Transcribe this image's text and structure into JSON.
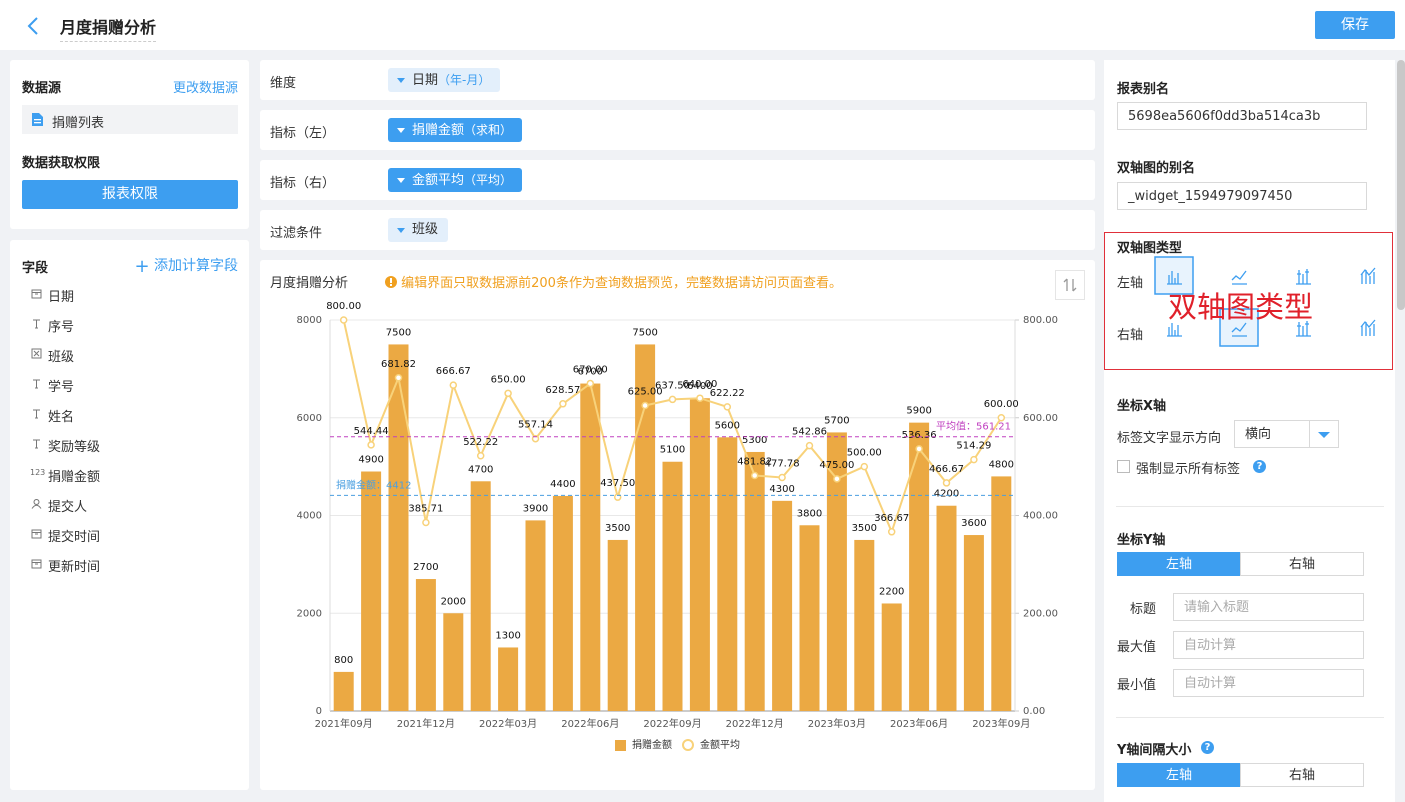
{
  "header": {
    "title": "月度捐赠分析",
    "save": "保存"
  },
  "data_source": {
    "title": "数据源",
    "change": "更改数据源",
    "table": "捐赠列表",
    "permission_title": "数据获取权限",
    "permission_button": "报表权限"
  },
  "fields": {
    "title": "字段",
    "add": "添加计算字段",
    "items": [
      {
        "name": "日期"
      },
      {
        "name": "序号"
      },
      {
        "name": "班级"
      },
      {
        "name": "学号"
      },
      {
        "name": "姓名"
      },
      {
        "name": "奖励等级"
      },
      {
        "name": "捐赠金额",
        "icon": "123"
      },
      {
        "name": "提交人"
      },
      {
        "name": "提交时间"
      },
      {
        "name": "更新时间"
      }
    ]
  },
  "config": {
    "rows": [
      {
        "label": "维度",
        "field": "日期",
        "suffix": "（年-月）",
        "filled": false
      },
      {
        "label": "指标（左）",
        "field": "捐赠金额",
        "suffix": "（求和）",
        "filled": true
      },
      {
        "label": "指标（右）",
        "field": "金额平均",
        "suffix": "（平均）",
        "filled": true
      },
      {
        "label": "过滤条件",
        "field": "班级",
        "filled": false
      }
    ]
  },
  "chart_data": {
    "type": "bar_line",
    "title": "月度捐赠分析",
    "notice": "编辑界面只取数据源前200条作为查询数据预览，完整数据请访问页面查看。",
    "categories": [
      "2021年09月",
      null,
      null,
      "2021年12月",
      null,
      null,
      "2022年03月",
      null,
      null,
      "2022年06月",
      null,
      null,
      "2022年09月",
      null,
      null,
      "2022年12月",
      null,
      null,
      "2023年03月",
      null,
      null,
      "2023年06月",
      null,
      null,
      "2023年09月"
    ],
    "series": [
      {
        "name": "捐赠金额",
        "type": "bar",
        "color": "#eba943",
        "values": [
          800,
          4900,
          7500,
          2700,
          2000,
          4700,
          1300,
          3900,
          4400,
          6700,
          3500,
          7500,
          5100,
          6400,
          5600,
          5300,
          4300,
          3800,
          5700,
          3500,
          2200,
          5900,
          4200,
          3600,
          4800
        ]
      },
      {
        "name": "金额平均",
        "type": "line",
        "axis": "y2",
        "color": "#f8d27a",
        "values": [
          800,
          544.44,
          681.82,
          385.71,
          666.67,
          522.22,
          650,
          557.14,
          628.57,
          670,
          437.5,
          625,
          637.5,
          640,
          622.22,
          481.82,
          477.78,
          542.86,
          475,
          500,
          366.67,
          536.36,
          466.67,
          514.29,
          600
        ],
        "value_labels": [
          "800.00",
          "544.44",
          "681.82",
          "385.71",
          "666.67",
          "522.22",
          "650.00",
          "557.14",
          "628.57",
          "670.00",
          "437.50",
          "625.00",
          "637.50",
          "640.00",
          "622.22",
          "481.82",
          "477.78",
          "542.86",
          "475.00",
          "500.00",
          "366.67",
          "536.36",
          "466.67",
          "514.29",
          "600.00"
        ]
      }
    ],
    "ylim": [
      0,
      8000
    ],
    "yticks": [
      0,
      2000,
      4000,
      6000,
      8000
    ],
    "y2lim": [
      0,
      800
    ],
    "y2ticks": [
      {
        "value": 0,
        "label": "0.00"
      },
      {
        "value": 200,
        "label": "200.00"
      },
      {
        "value": 400,
        "label": "400.00"
      },
      {
        "value": 600,
        "label": "600.00"
      },
      {
        "value": 800,
        "label": "800.00"
      }
    ],
    "grid": true,
    "legend": "bottom",
    "reference_lines": [
      {
        "label": "捐赠金额：4412",
        "value": 4412,
        "color": "#4a9fe0"
      },
      {
        "label": "平均值：561.21",
        "value": 561.21,
        "axis": "y2",
        "color": "#c040c0"
      }
    ]
  },
  "right_panel": {
    "alias_title": "报表别名",
    "alias": "5698ea5606f0dd3ba514ca3b",
    "widget_alias_title": "双轴图的别名",
    "widget_alias": "_widget_1594979097450",
    "chart_type_title": "双轴图类型",
    "left_axis": "左轴",
    "right_axis": "右轴",
    "annotation": "双轴图类型",
    "x_axis_title": "坐标X轴",
    "label_direction": "标签文字显示方向",
    "direction_value": "横向",
    "force_labels": "强制显示所有标签",
    "help_icon": "?",
    "y_axis_title": "坐标Y轴",
    "y_tabs": [
      "左轴",
      "右轴"
    ],
    "y_title_label": "标题",
    "y_title_placeholder": "请输入标题",
    "max_label": "最大值",
    "max_placeholder": "自动计算",
    "min_label": "最小值",
    "min_placeholder": "自动计算",
    "interval_title": "Y轴间隔大小",
    "interval_tabs": [
      "左轴",
      "右轴"
    ]
  }
}
